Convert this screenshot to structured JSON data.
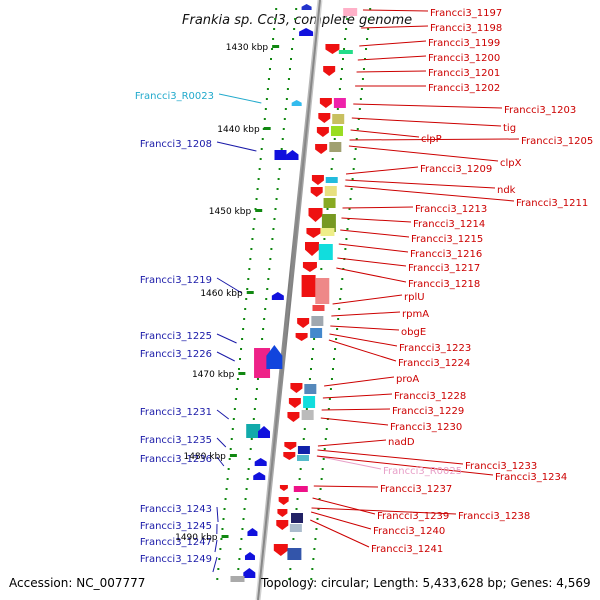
{
  "header": {
    "title": "Frankia sp. CcI3, complete genome"
  },
  "footer": {
    "accession": "Accession: NC_007777",
    "summary": "Topology: circular; Length: 5,433,628 bp; Genes: 4,569"
  },
  "colors": {
    "reverse_label": "#1a1aa8",
    "forward_label": "#cc0000",
    "rna_label": "#22aacc",
    "rna_label_pale": "#e8a0c8",
    "backbone": "#8a8a8a",
    "tick": "#118811"
  },
  "positions": [
    "1430 kbp",
    "1440 kbp",
    "1450 kbp",
    "1460 kbp",
    "1470 kbp",
    "1480 kbp",
    "1490 kbp"
  ],
  "left_labels": [
    "Francci3_R0023",
    "Francci3_1208",
    "Francci3_1219",
    "Francci3_1225",
    "Francci3_1226",
    "Francci3_1231",
    "Francci3_1235",
    "Francci3_1236",
    "Francci3_1243",
    "Francci3_1245",
    "Francci3_1247",
    "Francci3_1249"
  ],
  "right_labels": [
    "Francci3_1197",
    "Francci3_1198",
    "Francci3_1199",
    "Francci3_1200",
    "Francci3_1201",
    "Francci3_1202",
    "Francci3_1203",
    "tig",
    "clpP",
    "Francci3_1205",
    "clpX",
    "Francci3_1209",
    "ndk",
    "Francci3_1211",
    "Francci3_1213",
    "Francci3_1214",
    "Francci3_1215",
    "Francci3_1216",
    "Francci3_1217",
    "Francci3_1218",
    "rplU",
    "rpmA",
    "obgE",
    "Francci3_1223",
    "Francci3_1224",
    "proA",
    "Francci3_1228",
    "Francci3_1229",
    "Francci3_1230",
    "nadD",
    "Francci3_R0025",
    "Francci3_1233",
    "Francci3_1234",
    "Francci3_1237",
    "Francci3_1238",
    "Francci3_1239",
    "Francci3_1240",
    "Francci3_1241"
  ]
}
